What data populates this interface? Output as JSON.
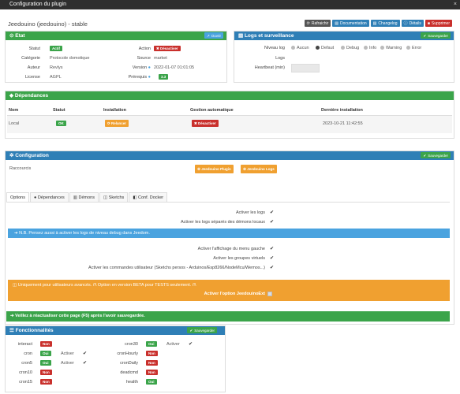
{
  "window": {
    "title": "Configuration du plugin",
    "close": "×"
  },
  "plugin": {
    "name": "Jeedouino (jeedouino) - stable"
  },
  "toolbar": {
    "refresh": "Rafraichir",
    "documentation": "Documentation",
    "changelog": "Changelog",
    "details": "Détails",
    "delete": "Supprimer"
  },
  "etat": {
    "title": "Etat",
    "open_btn": "Ouvrir",
    "statut_label": "Statut",
    "statut_value": "Actif",
    "action_label": "Action",
    "action_value": "Désactiver",
    "categorie_label": "Catégorie",
    "categorie_value": "Protocole domotique",
    "source_label": "Source",
    "source_value": "market",
    "auteur_label": "Auteur",
    "auteur_value": "Revlys",
    "version_label": "Version",
    "version_value": "2022-01-07 01:01:05",
    "licence_label": "License",
    "licence_value": "AGPL",
    "prerequis_label": "Prérequis",
    "prerequis_value": "3.3"
  },
  "logs": {
    "title": "Logs et surveillance",
    "save_btn": "Sauvegarder",
    "niveau_label": "Niveau log",
    "levels": [
      "Aucun",
      "Defaut",
      "Debug",
      "Info",
      "Warning",
      "Error"
    ],
    "selected_level": "Defaut",
    "logs_label": "Logs",
    "heartbeat_label": "Heartbeat (min)"
  },
  "deps": {
    "title": "Dépendances",
    "headers": {
      "nom": "Nom",
      "statut": "Statut",
      "installation": "Installation",
      "gestion": "Gestion automatique",
      "derniere": "Dernière installation"
    },
    "row": {
      "nom": "Local",
      "statut": "OK",
      "installation": "Relancer",
      "gestion": "Désactiver",
      "derniere": "2023-10-21 11:42:55"
    }
  },
  "config": {
    "title": "Configuration",
    "save_btn": "Sauvegarder",
    "raccourcis": "Raccourcis",
    "btn_plugin": "Jeedouino Plugin",
    "btn_logs": "Jeedouino Logs",
    "tabs": [
      "Options",
      "Dépendances",
      "Démons",
      "Sketchs",
      "Conf. Docker"
    ],
    "opt1": "Activer les logs",
    "opt2": "Activer les logs séparés des démons locaux",
    "note": "N.B. Pensez aussi à activer les logs de niveau debug dans Jeedom.",
    "opt3": "Activer l'affichage du menu gauche",
    "opt4": "Activer les groupes virtuels",
    "opt5": "Activer les commandes utilisateur (Sketchs persos - Arduinos/Esp8266/NodeMcu/Wemos...)",
    "warn": "Uniquement pour utilisateurs avancés. /!\\ Option en version BETA pour TESTS seulement. /!\\",
    "opt6": "Activer l'option JeedouinoExt",
    "reload": "Veillez à réactualiser cette page (F5) après l'avoir sauvegardée."
  },
  "fonct": {
    "title": "Fonctionnalités",
    "save_btn": "Sauvegarder",
    "left": [
      {
        "name": "interact",
        "state": "Non",
        "activer": ""
      },
      {
        "name": "cron",
        "state": "Oui",
        "activer": "Activer"
      },
      {
        "name": "cron5",
        "state": "Oui",
        "activer": "Activer"
      },
      {
        "name": "cron10",
        "state": "Non",
        "activer": ""
      },
      {
        "name": "cron15",
        "state": "Non",
        "activer": ""
      }
    ],
    "right": [
      {
        "name": "cron30",
        "state": "Oui",
        "activer": "Activer"
      },
      {
        "name": "cronHourly",
        "state": "Non",
        "activer": ""
      },
      {
        "name": "cronDaily",
        "state": "Non",
        "activer": ""
      },
      {
        "name": "deadcmd",
        "state": "Non",
        "activer": ""
      },
      {
        "name": "health",
        "state": "Oui",
        "activer": ""
      }
    ]
  }
}
